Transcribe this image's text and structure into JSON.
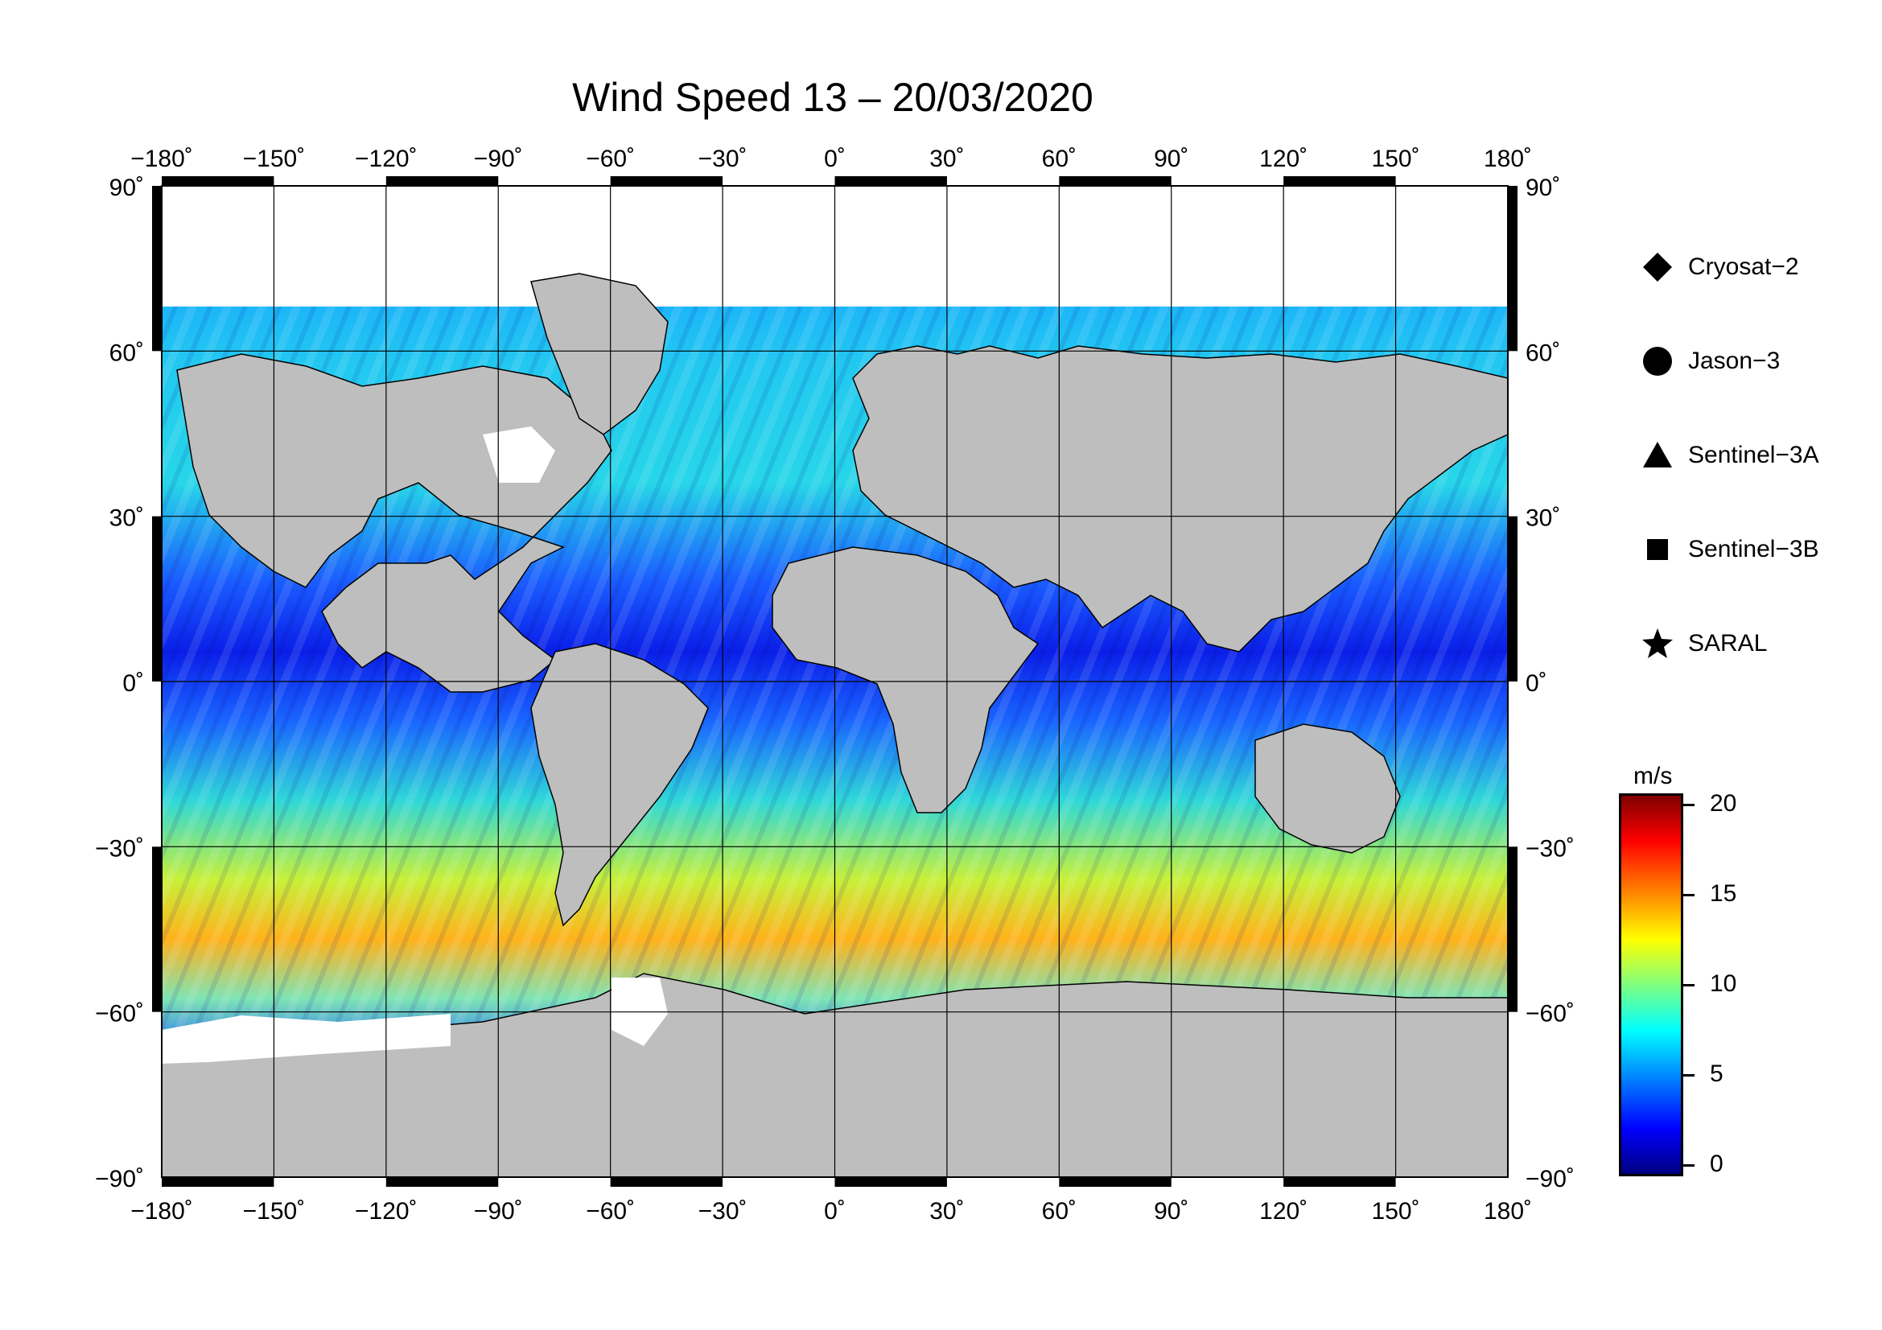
{
  "title": "Wind Speed 13 – 20/03/2020",
  "map": {
    "lon_ticks": [
      "−180˚",
      "−150˚",
      "−120˚",
      "−90˚",
      "−60˚",
      "−30˚",
      "0˚",
      "30˚",
      "60˚",
      "90˚",
      "120˚",
      "150˚",
      "180˚"
    ],
    "lat_ticks": [
      "90˚",
      "60˚",
      "30˚",
      "0˚",
      "−30˚",
      "−60˚",
      "−90˚"
    ],
    "lon_values": [
      -180,
      -150,
      -120,
      -90,
      -60,
      -30,
      0,
      30,
      60,
      90,
      120,
      150,
      180
    ],
    "lat_values": [
      90,
      60,
      30,
      0,
      -30,
      -60,
      -90
    ],
    "land_color": "#bebebe",
    "ice_color": "#ffffff"
  },
  "legend": [
    {
      "symbol": "diamond",
      "label": "Cryosat−2"
    },
    {
      "symbol": "circle",
      "label": "Jason−3"
    },
    {
      "symbol": "triangle",
      "label": "Sentinel−3A"
    },
    {
      "symbol": "square",
      "label": "Sentinel−3B"
    },
    {
      "symbol": "star",
      "label": "SARAL"
    }
  ],
  "colorbar": {
    "unit": "m/s",
    "ticks": [
      "20",
      "15",
      "10",
      "5",
      "0"
    ],
    "tick_values": [
      20,
      15,
      10,
      5,
      0
    ],
    "min": 0,
    "max": 20
  }
}
